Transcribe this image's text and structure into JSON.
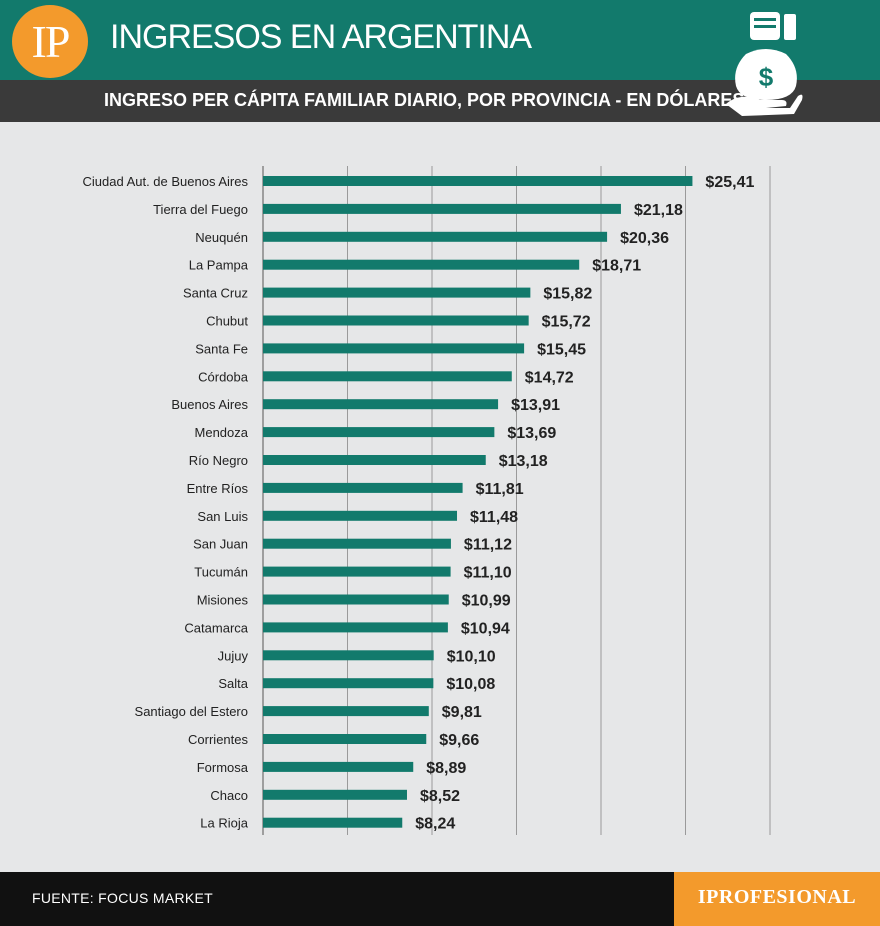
{
  "header": {
    "logo_text": "IP",
    "title": "INGRESOS EN ARGENTINA",
    "subtitle": "INGRESO PER CÁPITA FAMILIAR DIARIO, POR PROVINCIA - EN DÓLARES",
    "icon": "money-bag-hand-icon"
  },
  "colors": {
    "header_bg": "#127a6c",
    "bar": "#127a6c",
    "accent": "#f39a2c",
    "subheader_bg": "#3a3a3a",
    "background": "#e6e7e8",
    "footer_bg": "#111111"
  },
  "chart_data": {
    "type": "bar",
    "orientation": "horizontal",
    "title": "",
    "xlabel": "",
    "ylabel": "",
    "xlim": [
      0,
      30
    ],
    "grid": true,
    "categories": [
      "Ciudad Aut. de Buenos Aires",
      "Tierra del Fuego",
      "Neuquén",
      "La Pampa",
      "Santa Cruz",
      "Chubut",
      "Santa Fe",
      "Córdoba",
      "Buenos Aires",
      "Mendoza",
      "Río Negro",
      "Entre Ríos",
      "San Luis",
      "San Juan",
      "Tucumán",
      "Misiones",
      "Catamarca",
      "Jujuy",
      "Salta",
      "Santiago del Estero",
      "Corrientes",
      "Formosa",
      "Chaco",
      "La Rioja"
    ],
    "values": [
      25.41,
      21.18,
      20.36,
      18.71,
      15.82,
      15.72,
      15.45,
      14.72,
      13.91,
      13.69,
      13.18,
      11.81,
      11.48,
      11.12,
      11.1,
      10.99,
      10.94,
      10.1,
      10.08,
      9.81,
      9.66,
      8.89,
      8.52,
      8.24
    ],
    "value_labels": [
      "$25,41",
      "$21,18",
      "$20,36",
      "$18,71",
      "$15,82",
      "$15,72",
      "$15,45",
      "$14,72",
      "$13,91",
      "$13,69",
      "$13,18",
      "$11,81",
      "$11,48",
      "$11,12",
      "$11,10",
      "$10,99",
      "$10,94",
      "$10,10",
      "$10,08",
      "$9,81",
      "$9,66",
      "$8,89",
      "$8,52",
      "$8,24"
    ]
  },
  "footer": {
    "source": "FUENTE: FOCUS MARKET",
    "brand": "IPROFESIONAL"
  }
}
